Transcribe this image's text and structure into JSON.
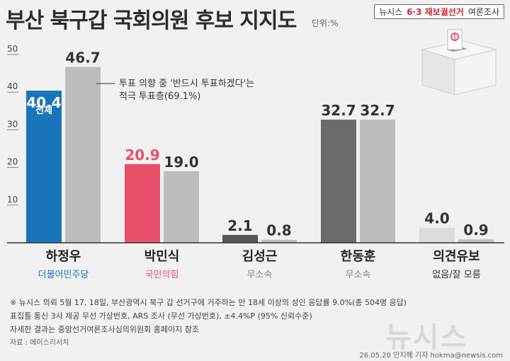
{
  "header": {
    "title": "부산 북구갑 국회의원 후보 지지도",
    "unit": "단위:%",
    "brand_name": "뉴시스",
    "brand_tag": "6·3 재보궐선거",
    "brand_sub": "여론조사"
  },
  "chart_data": {
    "type": "bar",
    "title": "부산 북구갑 국회의원 후보 지지도",
    "ylim": [
      0,
      50
    ],
    "yticks": [
      10,
      20,
      30,
      40,
      50
    ],
    "grid": false,
    "categories": [
      "하정우",
      "박민식",
      "김성근",
      "한동훈",
      "의견유보"
    ],
    "parties": [
      "더불어민주당",
      "국민의힘",
      "무소속",
      "무소속",
      "없음/잘 모름"
    ],
    "series": [
      {
        "name": "전체",
        "values": [
          40.4,
          20.9,
          2.1,
          32.7,
          4.0
        ]
      },
      {
        "name": "투표 의향 중 '반드시 투표하겠다'는 적극 투표층(69.1%)",
        "values": [
          46.7,
          19.0,
          0.8,
          32.7,
          0.9
        ]
      }
    ],
    "annotations": {
      "series_label": "전체",
      "callout_line1": "투표 의향 중 '반드시 투표하겠다'는",
      "callout_line2": "적극 투표층(69.1%)"
    }
  },
  "colors": {
    "primary": [
      "#1a74b8",
      "#e8506a",
      "#555555",
      "#6b6b6b",
      "#dcdcdc"
    ],
    "secondary": "#bdbdbd",
    "value_label": [
      "#1a74b8",
      "#e8506a",
      "#333333",
      "#333333",
      "#333333"
    ],
    "party": [
      "#1a74b8",
      "#e8506a",
      "#888888",
      "#888888",
      "#333333"
    ]
  },
  "notes": {
    "line1": "※ 뉴시스 의뢰 5월 17, 18일, 부산광역시 북구 갑 선거구에 거주하는 만 18세 이상의 성인  응답률 9.0%(총 504명 응답)",
    "line2": "표집틀 통신 3사 제공 무선 가상번호, ARS 조사 (무선 가상번호), ±4.4%P (95% 신뢰수준)",
    "line3": "자세한 결과는 중앙선거여론조사심의위원회 홈페이지 참조",
    "source": "자료 : 에이스리서치",
    "watermark": "뉴시스",
    "credit": "26.05.20 안지혜 기자 hokma@newsis.com"
  }
}
